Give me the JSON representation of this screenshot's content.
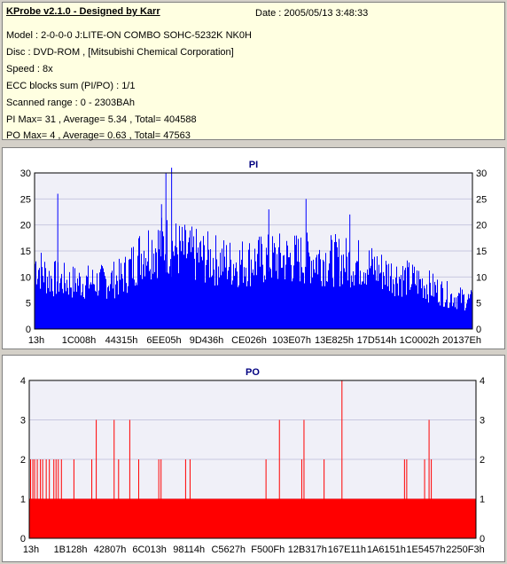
{
  "header": {
    "title": "KProbe v2.1.0 - Designed by Karr",
    "date": "Date : 2005/05/13 3:48:33",
    "lines": [
      "Model : 2-0-0-0 J:LITE-ON COMBO SOHC-5232K NK0H",
      "Disc : DVD-ROM ,  [Mitsubishi Chemical Corporation]",
      "Speed : 8x",
      "ECC blocks sum (PI/PO) : 1/1",
      "Scanned range : 0 - 2303BAh",
      "PI Max= 31 , Average= 5.34 , Total= 404588",
      "PO Max= 4 , Average= 0.63 , Total= 47563"
    ]
  },
  "colors": {
    "pi": "#0000ff",
    "po": "#ff0000",
    "plot_bg": "#f0f0f8",
    "title": "#000080",
    "info_bg": "#ffffe1"
  },
  "chart_data": [
    {
      "type": "bar",
      "title": "PI",
      "ylim": [
        0,
        30
      ],
      "yticks": [
        0,
        5,
        10,
        15,
        20,
        25,
        30
      ],
      "grid": true,
      "xtick_labels": [
        "13h",
        "1C008h",
        "44315h",
        "6EE05h",
        "9D436h",
        "CE026h",
        "103E07h",
        "13E825h",
        "17D514h",
        "1C0002h",
        "20137Eh"
      ],
      "series": [
        {
          "envelope": [
            {
              "x": 0.0,
              "y": 14
            },
            {
              "x": 0.03,
              "y": 11
            },
            {
              "x": 0.08,
              "y": 10
            },
            {
              "x": 0.15,
              "y": 10
            },
            {
              "x": 0.2,
              "y": 11
            },
            {
              "x": 0.25,
              "y": 17
            },
            {
              "x": 0.3,
              "y": 18
            },
            {
              "x": 0.35,
              "y": 16
            },
            {
              "x": 0.45,
              "y": 14
            },
            {
              "x": 0.55,
              "y": 15
            },
            {
              "x": 0.65,
              "y": 15
            },
            {
              "x": 0.75,
              "y": 14
            },
            {
              "x": 0.8,
              "y": 12
            },
            {
              "x": 0.88,
              "y": 10
            },
            {
              "x": 0.95,
              "y": 7
            },
            {
              "x": 1.0,
              "y": 6
            }
          ],
          "spikes": [
            {
              "x": 0.053,
              "y": 26
            },
            {
              "x": 0.3,
              "y": 30
            },
            {
              "x": 0.313,
              "y": 31
            },
            {
              "x": 0.29,
              "y": 24
            },
            {
              "x": 0.62,
              "y": 25
            },
            {
              "x": 0.535,
              "y": 23
            },
            {
              "x": 0.72,
              "y": 22
            }
          ]
        }
      ]
    },
    {
      "type": "bar",
      "title": "PO",
      "ylim": [
        0,
        4
      ],
      "yticks": [
        0,
        1,
        2,
        3,
        4
      ],
      "grid": true,
      "xtick_labels": [
        "13h",
        "1B128h",
        "42807h",
        "6C013h",
        "98114h",
        "C5627h",
        "F500Fh",
        "12B317h",
        "167E11h",
        "1A6151h",
        "1E5457h",
        "2250F3h"
      ],
      "series": [
        {
          "base": 1,
          "spikes": [
            {
              "x": 0.003,
              "y": 2
            },
            {
              "x": 0.008,
              "y": 2
            },
            {
              "x": 0.012,
              "y": 2
            },
            {
              "x": 0.018,
              "y": 2
            },
            {
              "x": 0.025,
              "y": 2
            },
            {
              "x": 0.03,
              "y": 2
            },
            {
              "x": 0.038,
              "y": 2
            },
            {
              "x": 0.045,
              "y": 2
            },
            {
              "x": 0.055,
              "y": 2
            },
            {
              "x": 0.06,
              "y": 2
            },
            {
              "x": 0.065,
              "y": 2
            },
            {
              "x": 0.072,
              "y": 2
            },
            {
              "x": 0.1,
              "y": 2
            },
            {
              "x": 0.14,
              "y": 2
            },
            {
              "x": 0.15,
              "y": 3
            },
            {
              "x": 0.19,
              "y": 3
            },
            {
              "x": 0.2,
              "y": 2
            },
            {
              "x": 0.225,
              "y": 3
            },
            {
              "x": 0.245,
              "y": 2
            },
            {
              "x": 0.29,
              "y": 2
            },
            {
              "x": 0.295,
              "y": 2
            },
            {
              "x": 0.35,
              "y": 2
            },
            {
              "x": 0.36,
              "y": 2
            },
            {
              "x": 0.53,
              "y": 2
            },
            {
              "x": 0.56,
              "y": 3
            },
            {
              "x": 0.61,
              "y": 2
            },
            {
              "x": 0.615,
              "y": 3
            },
            {
              "x": 0.66,
              "y": 2
            },
            {
              "x": 0.7,
              "y": 4
            },
            {
              "x": 0.84,
              "y": 2
            },
            {
              "x": 0.845,
              "y": 2
            },
            {
              "x": 0.885,
              "y": 2
            },
            {
              "x": 0.895,
              "y": 3
            },
            {
              "x": 0.9,
              "y": 2
            }
          ]
        }
      ]
    }
  ]
}
